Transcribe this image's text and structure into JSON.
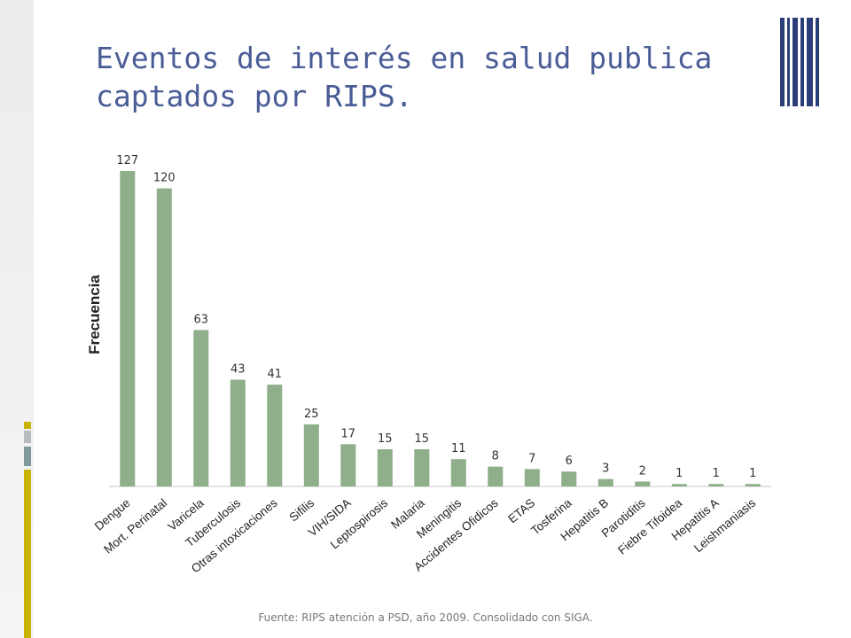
{
  "title_lines": [
    "Eventos de interés en salud publica",
    "captados por RIPS."
  ],
  "source_note": "Fuente: RIPS atención a PSD, año 2009. Consolidado con SIGA.",
  "colors": {
    "bar": "#8fae8a",
    "title": "#4a5c96",
    "accent_yellow": "#c8b400",
    "accent_gray": "#b8bcc0",
    "accent_teal": "#7f9a9a",
    "deco_navy": "#2a3e78"
  },
  "chart_data": {
    "type": "bar",
    "title": "",
    "xlabel": "",
    "ylabel": "Frecuencia",
    "ylim": [
      0,
      127
    ],
    "grid": false,
    "categories": [
      "Dengue",
      "Mort. Perinatal",
      "Varicela",
      "Tuberculosis",
      "Otras intoxicaciones",
      "Sifilis",
      "VIH/SIDA",
      "Leptospirosis",
      "Malaria",
      "Meningitis",
      "Accidentes Ofidicos",
      "ETAS",
      "Tosferina",
      "Hepatitis B",
      "Parotiditis",
      "Fiebre Tifoidea",
      "Hepatitis A",
      "Leishmaniasis"
    ],
    "values": [
      127,
      120,
      63,
      43,
      41,
      25,
      17,
      15,
      15,
      11,
      8,
      7,
      6,
      3,
      2,
      1,
      1,
      1
    ]
  }
}
